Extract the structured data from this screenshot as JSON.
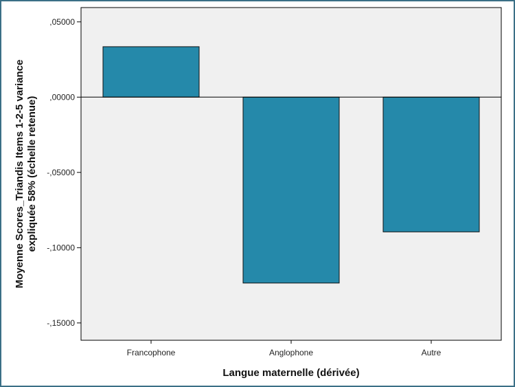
{
  "chart_data": {
    "type": "bar",
    "title": "",
    "xlabel": "Langue maternelle (dérivée)",
    "ylabel_lines": [
      "Moyenne Scores_Triandis Items 1-2-5 variance",
      "expliquée 58% (échelle retenue)"
    ],
    "categories": [
      "Francophone",
      "Anglophone",
      "Autre"
    ],
    "values": [
      0.0335,
      -0.1235,
      -0.0895
    ],
    "ylim": [
      -0.1615,
      0.0595
    ],
    "yticks": [
      0.05,
      0.0,
      -0.05,
      -0.1,
      -0.15
    ],
    "ytick_labels": [
      ",05000",
      ",00000",
      "-,05000",
      "-,10000",
      "-,15000"
    ],
    "grid": false,
    "legend": "none",
    "colors": {
      "bar": "#2589aa",
      "bar_stroke": "#111111",
      "plot_background": "#f0f0f0",
      "frame": "#3a6f86"
    }
  }
}
